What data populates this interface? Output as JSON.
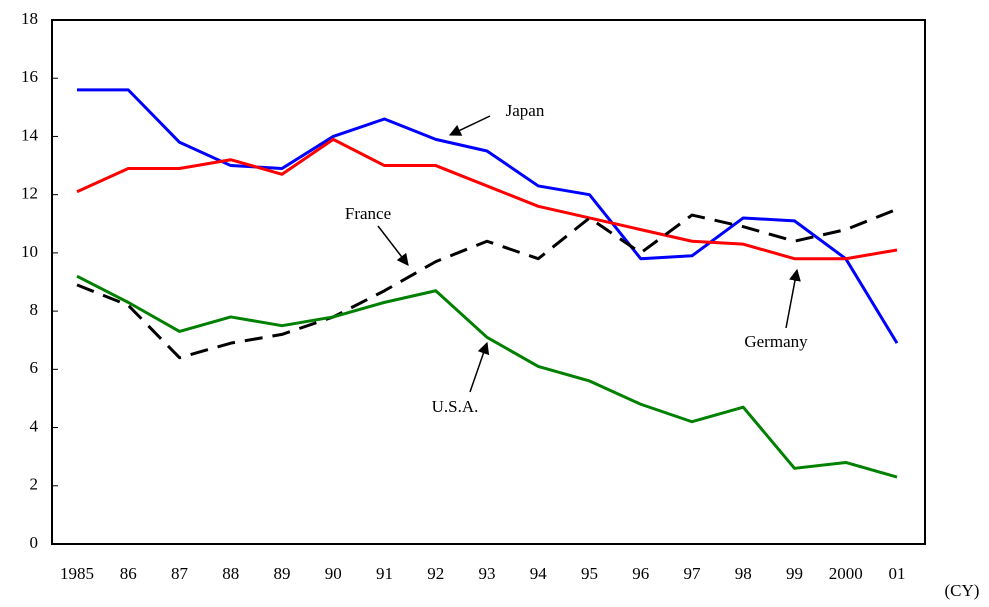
{
  "chart_data": {
    "type": "line",
    "x_label": "(CY)",
    "categories": [
      "1985",
      "86",
      "87",
      "88",
      "89",
      "90",
      "91",
      "92",
      "93",
      "94",
      "95",
      "96",
      "97",
      "98",
      "99",
      "2000",
      "01"
    ],
    "series": [
      {
        "name": "Japan",
        "color": "#0000ff",
        "values": [
          15.6,
          15.6,
          13.8,
          13.0,
          12.9,
          14.0,
          14.6,
          13.9,
          13.5,
          12.3,
          12.0,
          9.8,
          9.9,
          11.2,
          11.1,
          9.8,
          6.9
        ]
      },
      {
        "name": "Germany",
        "color": "#ff0000",
        "values": [
          12.1,
          12.9,
          12.9,
          13.2,
          12.7,
          13.9,
          13.0,
          13.0,
          12.3,
          11.6,
          11.2,
          10.8,
          10.4,
          10.3,
          9.8,
          9.8,
          10.1
        ]
      },
      {
        "name": "France",
        "color": "#000000",
        "dashed": true,
        "values": [
          8.9,
          8.2,
          6.4,
          6.9,
          7.2,
          7.8,
          8.7,
          9.7,
          10.4,
          9.8,
          11.2,
          10.0,
          11.3,
          10.9,
          10.4,
          10.8,
          11.5
        ]
      },
      {
        "name": "U.S.A.",
        "color": "#008000",
        "values": [
          9.2,
          8.3,
          7.3,
          7.8,
          7.5,
          7.8,
          8.3,
          8.7,
          7.1,
          6.1,
          5.6,
          4.8,
          4.2,
          4.7,
          2.6,
          2.8,
          2.3
        ]
      }
    ],
    "ylim": [
      0,
      18
    ],
    "yticks": [
      0,
      2,
      4,
      6,
      8,
      10,
      12,
      14,
      16,
      18
    ]
  }
}
